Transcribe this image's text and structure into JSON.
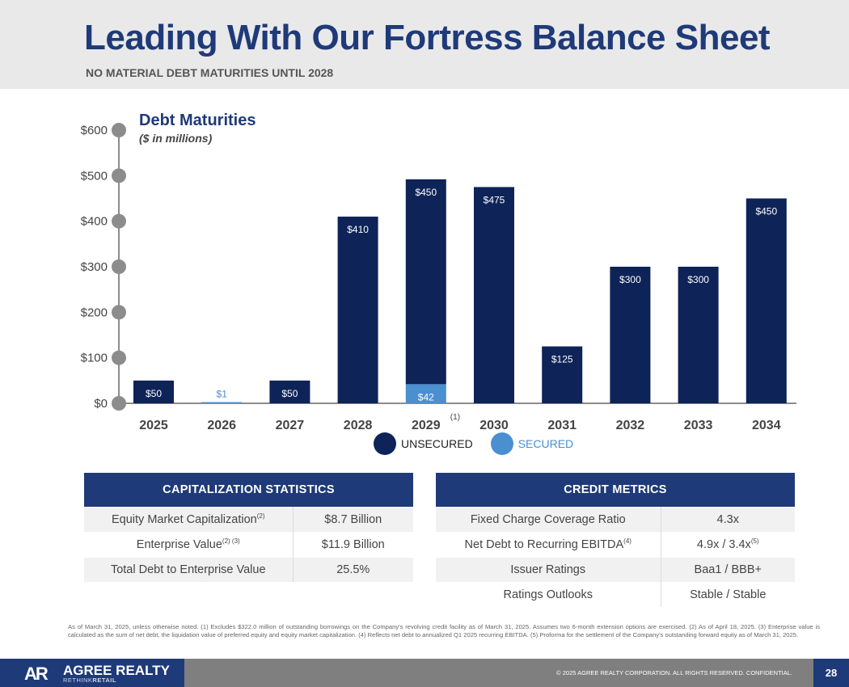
{
  "header": {
    "title": "Leading With Our Fortress Balance Sheet",
    "subtitle": "NO MATERIAL DEBT MATURITIES UNTIL 2028"
  },
  "chart_data": {
    "type": "bar",
    "title": "Debt Maturities",
    "subtitle": "($ in millions)",
    "categories": [
      "2025",
      "2026",
      "2027",
      "2028",
      "2029",
      "2030",
      "2031",
      "2032",
      "2033",
      "2034"
    ],
    "category_notes": [
      "",
      "",
      "",
      "",
      "(1)",
      "",
      "",
      "",
      "",
      ""
    ],
    "stacked": true,
    "series": [
      {
        "name": "UNSECURED",
        "color": "#0e2358",
        "values": [
          50,
          0,
          50,
          410,
          450,
          475,
          125,
          300,
          300,
          450
        ],
        "labels": [
          "$50",
          "",
          "$50",
          "$410",
          "$450",
          "$475",
          "$125",
          "$300",
          "$300",
          "$450"
        ]
      },
      {
        "name": "SECURED",
        "color": "#4a8fd0",
        "values": [
          0,
          1,
          0,
          0,
          42,
          0,
          0,
          0,
          0,
          0
        ],
        "labels": [
          "",
          "$1",
          "",
          "",
          "$42",
          "",
          "",
          "",
          "",
          ""
        ]
      }
    ],
    "y_ticks": [
      0,
      100,
      200,
      300,
      400,
      500,
      600
    ],
    "y_tick_labels": [
      "$0",
      "$100",
      "$200",
      "$300",
      "$400",
      "$500",
      "$600"
    ],
    "ylim": [
      0,
      600
    ],
    "legend_position": "bottom-center",
    "grid": false
  },
  "capitalization": {
    "heading": "CAPITALIZATION STATISTICS",
    "rows": [
      {
        "label": "Equity Market Capitalization",
        "note": "(2)",
        "value": "$8.7 Billion"
      },
      {
        "label": "Enterprise Value",
        "note": "(2) (3)",
        "value": "$11.9 Billion"
      },
      {
        "label": "Total Debt to Enterprise Value",
        "note": "",
        "value": "25.5%"
      }
    ]
  },
  "credit": {
    "heading": "CREDIT METRICS",
    "rows": [
      {
        "label": "Fixed Charge Coverage Ratio",
        "note": "",
        "value": "4.3x",
        "value_note": ""
      },
      {
        "label": "Net Debt to Recurring EBITDA",
        "note": "(4)",
        "value": "4.9x / 3.4x",
        "value_note": "(5)"
      },
      {
        "label": "Issuer Ratings",
        "note": "",
        "value": "Baa1 / BBB+",
        "value_note": ""
      },
      {
        "label": "Ratings Outlooks",
        "note": "",
        "value": "Stable / Stable",
        "value_note": ""
      }
    ]
  },
  "footnote": "As of March 31, 2025, unless otherwise noted. (1) Excludes $322.0 million of outstanding borrowings on the Company's revolving credit facility as of March 31, 2025. Assumes two 6-month extension options are exercised. (2) As of April 18, 2025. (3) Enterprise value is calculated as the sum of net debt, the liquidation value of preferred equity and equity market capitalization. (4) Reflects net debt to annualized Q1 2025 recurring EBITDA. (5) Proforma for the settlement of the Company's outstanding forward equity as of March 31, 2025.",
  "footer": {
    "logo_mark": "AR",
    "logo_name": "AGREE REALTY",
    "logo_tag_light": "RETHINK",
    "logo_tag_bold": "RETAIL",
    "copyright": "© 2025 AGREE REALTY CORPORATION. ALL RIGHTS RESERVED. CONFIDENTIAL.",
    "page_number": "28"
  }
}
